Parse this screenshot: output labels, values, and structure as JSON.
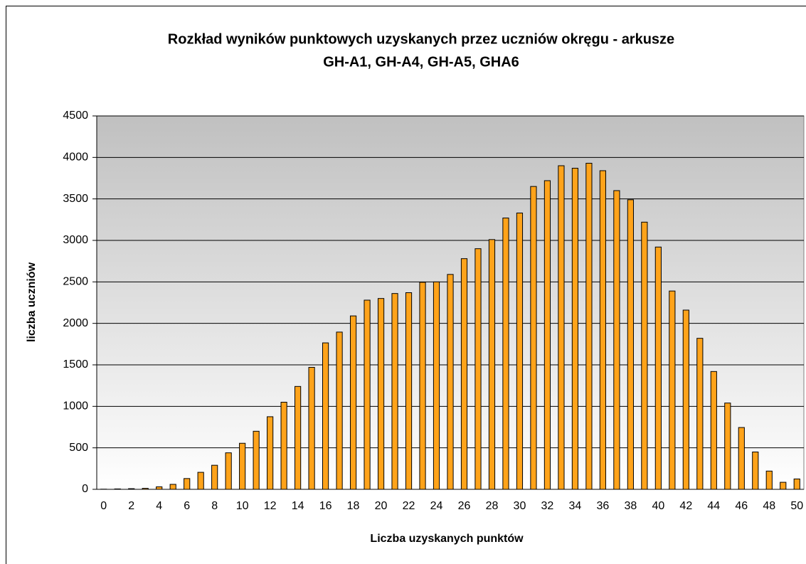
{
  "chart_data": {
    "type": "bar",
    "title": [
      "Rozkład wyników punktowych uzyskanych przez uczniów okręgu - arkusze",
      "GH-A1, GH-A4, GH-A5, GHA6"
    ],
    "x_label": "Liczba uzyskanych punktów",
    "y_label": "liczba uczniów",
    "categories": [
      0,
      null,
      2,
      null,
      4,
      null,
      6,
      null,
      8,
      null,
      10,
      null,
      12,
      null,
      14,
      null,
      16,
      null,
      18,
      null,
      20,
      null,
      22,
      null,
      24,
      null,
      26,
      null,
      28,
      null,
      30,
      null,
      32,
      null,
      34,
      null,
      36,
      null,
      38,
      null,
      40,
      null,
      42,
      null,
      44,
      null,
      46,
      null,
      48,
      null,
      50
    ],
    "values": [
      2,
      5,
      8,
      12,
      30,
      60,
      130,
      205,
      290,
      440,
      555,
      700,
      875,
      1050,
      1240,
      1470,
      1765,
      1895,
      2090,
      2280,
      2300,
      2360,
      2370,
      2495,
      2500,
      2590,
      2780,
      2900,
      3010,
      3270,
      3330,
      3650,
      3720,
      3900,
      3870,
      3930,
      3840,
      3600,
      3490,
      3220,
      2920,
      2390,
      2160,
      1820,
      1420,
      1040,
      745,
      450,
      220,
      85,
      125
    ],
    "color": "#ffa31a",
    "ylim": [
      0,
      4500
    ],
    "yticks": [
      0,
      500,
      1000,
      1500,
      2000,
      2500,
      3000,
      3500,
      4000,
      4500
    ],
    "grid": true
  }
}
